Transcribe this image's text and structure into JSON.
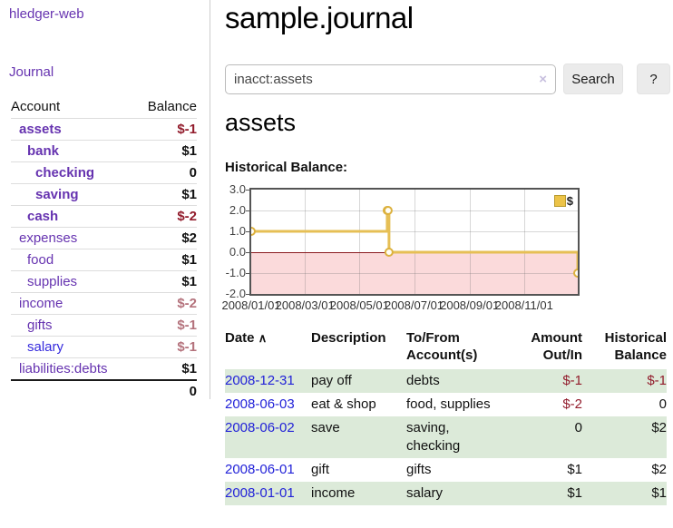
{
  "colors": {
    "link_purple": "#6633b0",
    "link_blue": "#2222d8",
    "negative_strong": "#921c2c",
    "negative_soft": "#b4727c",
    "row_green": "#dcead9",
    "chart_line_gold": "#e6bf55",
    "chart_negative_zone_pink": "#fbdadb",
    "chart_zero_line_red": "#8b1b20"
  },
  "sidebar": {
    "brand": "hledger-web",
    "journal_link": "Journal",
    "accounts": {
      "header_account": "Account",
      "header_balance": "Balance",
      "rows": [
        {
          "name": "assets",
          "balance": "$-1",
          "depth": 1,
          "bold": true,
          "tone": "neg-strong"
        },
        {
          "name": "bank",
          "balance": "$1",
          "depth": 2,
          "bold": true,
          "tone": "pos"
        },
        {
          "name": "checking",
          "balance": "0",
          "depth": 3,
          "bold": true,
          "tone": "pos"
        },
        {
          "name": "saving",
          "balance": "$1",
          "depth": 3,
          "bold": true,
          "tone": "pos"
        },
        {
          "name": "cash",
          "balance": "$-2",
          "depth": 2,
          "bold": true,
          "tone": "neg-strong"
        },
        {
          "name": "expenses",
          "balance": "$2",
          "depth": 1,
          "bold": false,
          "tone": "pos"
        },
        {
          "name": "food",
          "balance": "$1",
          "depth": 2,
          "bold": false,
          "tone": "pos"
        },
        {
          "name": "supplies",
          "balance": "$1",
          "depth": 2,
          "bold": false,
          "tone": "pos"
        },
        {
          "name": "income",
          "balance": "$-2",
          "depth": 1,
          "bold": false,
          "tone": "neg-soft"
        },
        {
          "name": "gifts",
          "balance": "$-1",
          "depth": 2,
          "bold": false,
          "tone": "neg-soft"
        },
        {
          "name": "salary",
          "balance": "$-1",
          "depth": 2,
          "bold": false,
          "tone": "neg-soft",
          "blue": true
        },
        {
          "name": "liabilities:debts",
          "balance": "$1",
          "depth": 1,
          "bold": false,
          "tone": "pos"
        }
      ],
      "total": "0"
    }
  },
  "header": {
    "title": "sample.journal"
  },
  "search": {
    "value": "inacct:assets",
    "clear_glyph": "×",
    "search_button": "Search",
    "help_button": "?"
  },
  "account_page": {
    "heading": "assets",
    "chart_label": "Historical Balance:"
  },
  "chart_data": {
    "type": "line",
    "step": "step-after",
    "title": "Historical Balance:",
    "series": [
      {
        "name": "$",
        "points": [
          {
            "date": "2008-01-01",
            "value": 1
          },
          {
            "date": "2008-06-01",
            "value": 2
          },
          {
            "date": "2008-06-02",
            "value": 2
          },
          {
            "date": "2008-06-03",
            "value": 0
          },
          {
            "date": "2008-12-31",
            "value": -1
          }
        ]
      }
    ],
    "x_range": [
      "2008-01-01",
      "2008-12-31"
    ],
    "ylim": [
      -2,
      3
    ],
    "yticks": [
      "3.0",
      "2.0",
      "1.0",
      "0.0",
      "-1.0",
      "-2.0"
    ],
    "xticks": [
      "2008/01/01",
      "2008/03/01",
      "2008/05/01",
      "2008/07/01",
      "2008/09/01",
      "2008/11/01"
    ],
    "grid": true,
    "legend": {
      "position": "top-right",
      "label": "$"
    },
    "negative_region_shaded": true
  },
  "register_table": {
    "sort_caret": "∧",
    "columns": {
      "date": "Date",
      "description": "Description",
      "accounts": "To/From Account(s)",
      "amount": "Amount Out/In",
      "balance": "Historical Balance"
    },
    "rows": [
      {
        "date": "2008-12-31",
        "description": "pay off",
        "accounts": "debts",
        "amount": "$-1",
        "balance": "$-1",
        "amount_neg": true,
        "balance_neg": true
      },
      {
        "date": "2008-06-03",
        "description": "eat & shop",
        "accounts": "food, supplies",
        "amount": "$-2",
        "balance": "0",
        "amount_neg": true,
        "balance_neg": false
      },
      {
        "date": "2008-06-02",
        "description": "save",
        "accounts": "saving, checking",
        "amount": "0",
        "balance": "$2",
        "amount_neg": false,
        "balance_neg": false
      },
      {
        "date": "2008-06-01",
        "description": "gift",
        "accounts": "gifts",
        "amount": "$1",
        "balance": "$2",
        "amount_neg": false,
        "balance_neg": false
      },
      {
        "date": "2008-01-01",
        "description": "income",
        "accounts": "salary",
        "amount": "$1",
        "balance": "$1",
        "amount_neg": false,
        "balance_neg": false
      }
    ]
  }
}
